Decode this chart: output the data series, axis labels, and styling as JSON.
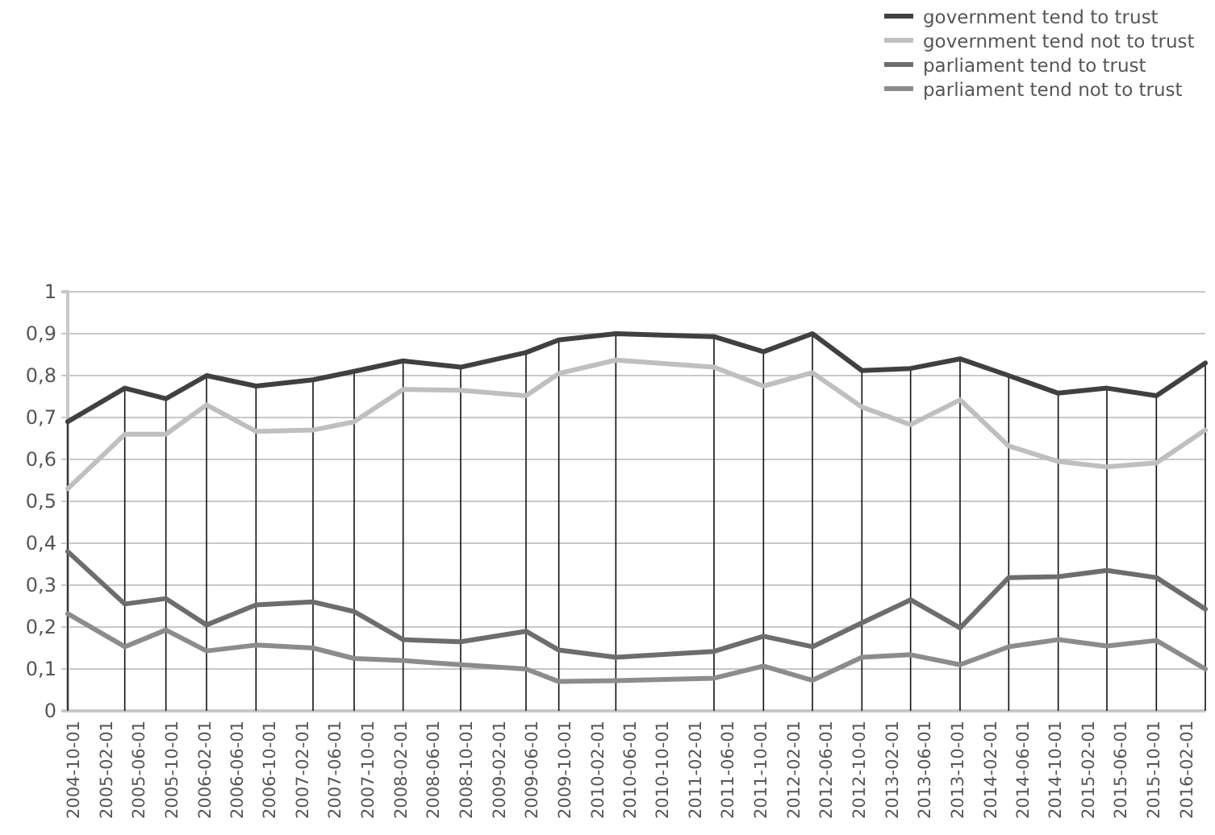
{
  "chart_data": {
    "type": "line",
    "x": [
      "2004-10-01",
      "2005-05-01",
      "2005-10-01",
      "2006-03-01",
      "2006-09-01",
      "2007-04-01",
      "2007-09-01",
      "2008-03-01",
      "2008-10-01",
      "2009-06-01",
      "2009-10-01",
      "2010-05-01",
      "2011-05-01",
      "2011-11-01",
      "2012-05-01",
      "2012-11-01",
      "2013-05-01",
      "2013-11-01",
      "2014-05-01",
      "2014-11-01",
      "2015-05-01",
      "2015-11-01",
      "2016-05-01"
    ],
    "series": [
      {
        "name": "government tend to trust",
        "color": "#404040",
        "values": [
          0.69,
          0.77,
          0.745,
          0.8,
          0.775,
          0.79,
          0.81,
          0.835,
          0.82,
          0.855,
          0.885,
          0.9,
          0.893,
          0.857,
          0.9,
          0.812,
          0.817,
          0.84,
          0.8,
          0.758,
          0.77,
          0.752,
          0.83
        ]
      },
      {
        "name": "government tend not to trust",
        "color": "#bfbfbf",
        "values": [
          0.53,
          0.66,
          0.66,
          0.73,
          0.667,
          0.67,
          0.69,
          0.767,
          0.765,
          0.752,
          0.805,
          0.837,
          0.82,
          0.775,
          0.807,
          0.725,
          0.683,
          0.742,
          0.632,
          0.595,
          0.582,
          0.592,
          0.67
        ]
      },
      {
        "name": "parliament tend to trust",
        "color": "#6d6d6d",
        "values": [
          0.38,
          0.255,
          0.268,
          0.205,
          0.253,
          0.26,
          0.237,
          0.17,
          0.165,
          0.19,
          0.145,
          0.128,
          0.142,
          0.178,
          0.153,
          0.21,
          0.265,
          0.198,
          0.318,
          0.32,
          0.335,
          0.318,
          0.243
        ]
      },
      {
        "name": "parliament tend not to trust",
        "color": "#8c8c8c",
        "values": [
          0.232,
          0.153,
          0.193,
          0.143,
          0.157,
          0.15,
          0.125,
          0.12,
          0.11,
          0.1,
          0.07,
          0.072,
          0.078,
          0.107,
          0.073,
          0.128,
          0.134,
          0.11,
          0.153,
          0.17,
          0.155,
          0.168,
          0.1
        ]
      }
    ],
    "xlim": [
      "2004-10-01",
      "2016-05-01"
    ],
    "xticks": [
      "2004-10-01",
      "2005-02-01",
      "2005-06-01",
      "2005-10-01",
      "2006-02-01",
      "2006-06-01",
      "2006-10-01",
      "2007-02-01",
      "2007-06-01",
      "2007-10-01",
      "2008-02-01",
      "2008-06-01",
      "2008-10-01",
      "2009-02-01",
      "2009-06-01",
      "2009-10-01",
      "2010-02-01",
      "2010-06-01",
      "2010-10-01",
      "2011-02-01",
      "2011-06-01",
      "2011-10-01",
      "2012-02-01",
      "2012-06-01",
      "2012-10-01",
      "2013-02-01",
      "2013-06-01",
      "2013-10-01",
      "2014-02-01",
      "2014-06-01",
      "2014-10-01",
      "2015-02-01",
      "2015-06-01",
      "2015-10-01",
      "2016-02-01"
    ],
    "ylim": [
      0,
      1
    ],
    "yticks": [
      0,
      {
        "value": 0.1,
        "label": "0,1"
      },
      {
        "value": 0.2,
        "label": "0,2"
      },
      {
        "value": 0.3,
        "label": "0,3"
      },
      {
        "value": 0.4,
        "label": "0,4"
      },
      {
        "value": 0.5,
        "label": "0,5"
      },
      {
        "value": 0.6,
        "label": "0,6"
      },
      {
        "value": 0.7,
        "label": "0,7"
      },
      {
        "value": 0.8,
        "label": "0,8"
      },
      {
        "value": 0.9,
        "label": "0,9"
      },
      1
    ],
    "ref_lines": [
      {
        "axis": "x",
        "value": "2004-10-01",
        "color": "#111111"
      },
      {
        "axis": "x",
        "value": "2005-05-01",
        "color": "#111111"
      },
      {
        "axis": "x",
        "value": "2005-10-01",
        "color": "#111111"
      },
      {
        "axis": "x",
        "value": "2006-03-01",
        "color": "#111111"
      },
      {
        "axis": "x",
        "value": "2006-09-01",
        "color": "#111111"
      },
      {
        "axis": "x",
        "value": "2007-04-01",
        "color": "#111111"
      },
      {
        "axis": "x",
        "value": "2007-09-01",
        "color": "#111111"
      },
      {
        "axis": "x",
        "value": "2008-03-01",
        "color": "#111111"
      },
      {
        "axis": "x",
        "value": "2008-10-01",
        "color": "#111111"
      },
      {
        "axis": "x",
        "value": "2009-06-01",
        "color": "#111111"
      },
      {
        "axis": "x",
        "value": "2009-10-01",
        "color": "#111111"
      },
      {
        "axis": "x",
        "value": "2010-05-01",
        "color": "#111111"
      },
      {
        "axis": "x",
        "value": "2011-05-01",
        "color": "#111111"
      },
      {
        "axis": "x",
        "value": "2011-11-01",
        "color": "#111111"
      },
      {
        "axis": "x",
        "value": "2012-05-01",
        "color": "#111111"
      },
      {
        "axis": "x",
        "value": "2012-11-01",
        "color": "#111111"
      },
      {
        "axis": "x",
        "value": "2013-05-01",
        "color": "#111111"
      },
      {
        "axis": "x",
        "value": "2013-11-01",
        "color": "#111111"
      },
      {
        "axis": "x",
        "value": "2014-05-01",
        "color": "#111111"
      },
      {
        "axis": "x",
        "value": "2014-11-01",
        "color": "#111111"
      },
      {
        "axis": "x",
        "value": "2015-05-01",
        "color": "#111111"
      },
      {
        "axis": "x",
        "value": "2015-11-01",
        "color": "#111111"
      },
      {
        "axis": "x",
        "value": "2016-05-01",
        "color": "#111111"
      }
    ],
    "grid": "y",
    "legend": "top right",
    "marker": "none",
    "line_style": "solid"
  }
}
